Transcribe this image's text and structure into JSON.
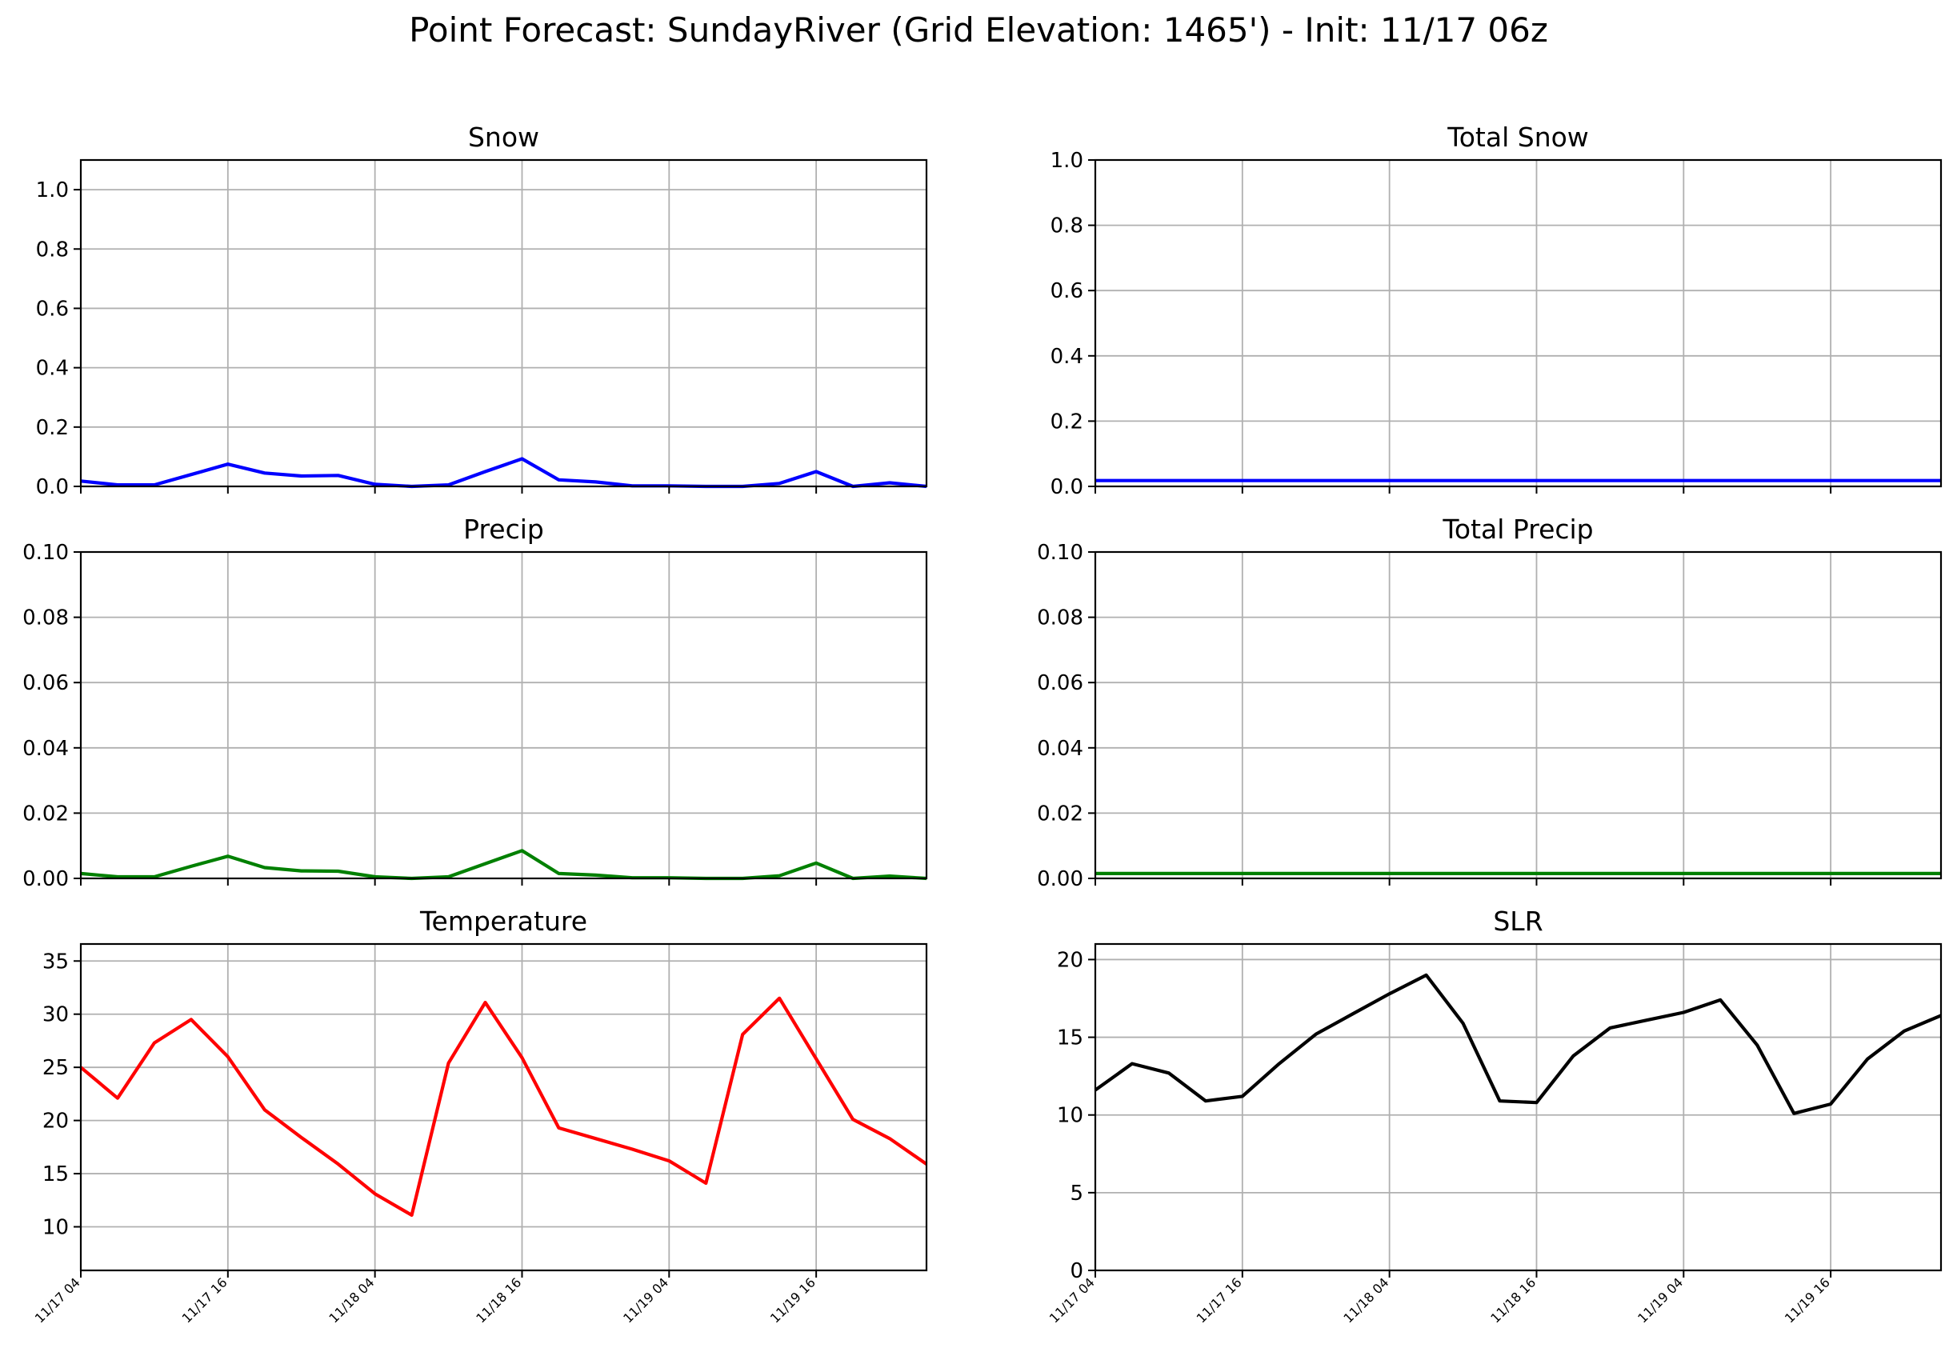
{
  "chart_data": {
    "title": "Point Forecast: SundayRiver (Grid Elevation: 1465') - Init: 11/17 06z",
    "x_tick_labels": [
      "11/17 04",
      "11/17 16",
      "11/18 04",
      "11/18 16",
      "11/19 04",
      "11/19 16"
    ],
    "x_tick_hours": [
      0,
      12,
      24,
      36,
      48,
      60
    ],
    "x_range_hours": [
      0,
      69
    ],
    "x_step_hours": 3,
    "grid": true,
    "panels": [
      {
        "key": "snow",
        "type": "line",
        "title": "Snow",
        "color": "#0000ff",
        "ylim": [
          0,
          1.1
        ],
        "yticks": [
          0.0,
          0.2,
          0.4,
          0.6,
          0.8,
          1.0
        ],
        "ytick_labels": [
          "0.0",
          "0.2",
          "0.4",
          "0.6",
          "0.8",
          "1.0"
        ],
        "values": [
          0.018,
          0.005,
          0.005,
          0.04,
          0.075,
          0.045,
          0.035,
          0.037,
          0.007,
          0.0,
          0.005,
          0.05,
          0.093,
          0.022,
          0.015,
          0.002,
          0.002,
          0.0,
          0.0,
          0.01,
          0.05,
          0.0,
          0.012,
          0.0
        ]
      },
      {
        "key": "total_snow",
        "type": "line",
        "title": "Total Snow",
        "color": "#0000ff",
        "ylim": [
          0,
          1.0
        ],
        "yticks": [
          0.0,
          0.2,
          0.4,
          0.6,
          0.8,
          1.0
        ],
        "ytick_labels": [
          "0.0",
          "0.2",
          "0.4",
          "0.6",
          "0.8",
          "1.0"
        ],
        "values": [
          0.018,
          0.018,
          0.018,
          0.018,
          0.018,
          0.018,
          0.018,
          0.018,
          0.018,
          0.018,
          0.018,
          0.018,
          0.018,
          0.018,
          0.018,
          0.018,
          0.018,
          0.018,
          0.018,
          0.018,
          0.018,
          0.018,
          0.018,
          0.018
        ]
      },
      {
        "key": "precip",
        "type": "line",
        "title": "Precip",
        "color": "#008000",
        "ylim": [
          0,
          0.1
        ],
        "yticks": [
          0.0,
          0.02,
          0.04,
          0.06,
          0.08,
          0.1
        ],
        "ytick_labels": [
          "0.00",
          "0.02",
          "0.04",
          "0.06",
          "0.08",
          "0.10"
        ],
        "values": [
          0.0015,
          0.0005,
          0.0005,
          0.0037,
          0.0068,
          0.0033,
          0.0023,
          0.0022,
          0.0005,
          0.0,
          0.0005,
          0.0045,
          0.0085,
          0.0015,
          0.001,
          0.0002,
          0.0002,
          0.0,
          0.0,
          0.0008,
          0.0047,
          0.0,
          0.0007,
          0.0
        ]
      },
      {
        "key": "total_precip",
        "type": "line",
        "title": "Total Precip",
        "color": "#008000",
        "ylim": [
          0,
          0.1
        ],
        "yticks": [
          0.0,
          0.02,
          0.04,
          0.06,
          0.08,
          0.1
        ],
        "ytick_labels": [
          "0.00",
          "0.02",
          "0.04",
          "0.06",
          "0.08",
          "0.10"
        ],
        "values": [
          0.0015,
          0.0015,
          0.0015,
          0.0015,
          0.0015,
          0.0015,
          0.0015,
          0.0015,
          0.0015,
          0.0015,
          0.0015,
          0.0015,
          0.0015,
          0.0015,
          0.0015,
          0.0015,
          0.0015,
          0.0015,
          0.0015,
          0.0015,
          0.0015,
          0.0015,
          0.0015,
          0.0015
        ]
      },
      {
        "key": "temperature",
        "type": "line",
        "title": "Temperature",
        "color": "#ff0000",
        "ylim": [
          5.9,
          36.6
        ],
        "yticks": [
          10,
          15,
          20,
          25,
          30,
          35
        ],
        "ytick_labels": [
          "10",
          "15",
          "20",
          "25",
          "30",
          "35"
        ],
        "values": [
          25.0,
          22.1,
          27.3,
          29.5,
          26.0,
          21.0,
          18.4,
          15.9,
          13.1,
          11.1,
          25.4,
          31.1,
          25.9,
          19.3,
          18.3,
          17.3,
          16.2,
          14.1,
          28.1,
          31.5,
          25.8,
          20.1,
          18.3,
          15.9
        ]
      },
      {
        "key": "slr",
        "type": "line",
        "title": "SLR",
        "color": "#000000",
        "ylim": [
          0,
          21
        ],
        "yticks": [
          0,
          5,
          10,
          15,
          20
        ],
        "ytick_labels": [
          "0",
          "5",
          "10",
          "15",
          "20"
        ],
        "values": [
          11.6,
          13.3,
          12.7,
          10.9,
          11.2,
          13.3,
          15.2,
          16.5,
          17.8,
          19.0,
          15.9,
          10.9,
          10.8,
          13.8,
          15.6,
          16.1,
          16.6,
          17.4,
          14.5,
          10.1,
          10.7,
          13.6,
          15.4,
          16.4
        ]
      }
    ]
  }
}
